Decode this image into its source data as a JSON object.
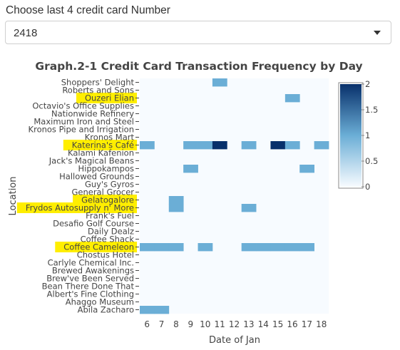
{
  "selector": {
    "label": "Choose last 4 credit card Number",
    "value": "2418"
  },
  "colors": {
    "highlight": "#ffee00",
    "plot_bg": "#f7fbff",
    "scale": [
      "#f7fbff",
      "#6baed6",
      "#08306b"
    ]
  },
  "chart_data": {
    "type": "heatmap",
    "title": "Graph.2-1 Credit Card Transaction Frequency by Day",
    "xlabel": "Date of Jan",
    "ylabel": "Location",
    "x": [
      6,
      7,
      8,
      9,
      10,
      11,
      12,
      13,
      14,
      15,
      16,
      17,
      18
    ],
    "y": [
      "Shoppers' Delight",
      "Roberts and Sons",
      "Ouzeri Elian",
      "Octavio's Office Supplies",
      "Nationwide Refinery",
      "Maximum Iron and Steel",
      "Kronos Pipe and Irrigation",
      "Kronos Mart",
      "Katerina's Café",
      "Kalami Kafenion",
      "Jack's Magical Beans",
      "Hippokampos",
      "Hallowed Grounds",
      "Guy's Gyros",
      "General Grocer",
      "Gelatogalore",
      "Frydos Autosupply n' More",
      "Frank's Fuel",
      "Desafio Golf Course",
      "Daily Dealz",
      "Coffee Shack",
      "Coffee Cameleon",
      "Chostus Hotel",
      "Carlyle Chemical Inc.",
      "Brewed Awakenings",
      "Brew've Been Served",
      "Bean There Done That",
      "Albert's Fine Clothing",
      "Ahaggo Museum",
      "Abila Zacharo"
    ],
    "highlighted": [
      "Ouzeri Elian",
      "Katerina's Café",
      "Gelatogalore",
      "Frydos Autosupply n' More",
      "Coffee Cameleon"
    ],
    "cells": [
      {
        "y": "Shoppers' Delight",
        "x": 11,
        "value": 1
      },
      {
        "y": "Ouzeri Elian",
        "x": 16,
        "value": 1
      },
      {
        "y": "Katerina's Café",
        "x": 6,
        "value": 1
      },
      {
        "y": "Katerina's Café",
        "x": 9,
        "value": 1
      },
      {
        "y": "Katerina's Café",
        "x": 10,
        "value": 1
      },
      {
        "y": "Katerina's Café",
        "x": 11,
        "value": 2
      },
      {
        "y": "Katerina's Café",
        "x": 13,
        "value": 1
      },
      {
        "y": "Katerina's Café",
        "x": 15,
        "value": 2
      },
      {
        "y": "Katerina's Café",
        "x": 16,
        "value": 1
      },
      {
        "y": "Katerina's Café",
        "x": 18,
        "value": 1
      },
      {
        "y": "Hippokampos",
        "x": 9,
        "value": 1
      },
      {
        "y": "Hippokampos",
        "x": 17,
        "value": 1
      },
      {
        "y": "Gelatogalore",
        "x": 8,
        "value": 1
      },
      {
        "y": "Frydos Autosupply n' More",
        "x": 8,
        "value": 1
      },
      {
        "y": "Frydos Autosupply n' More",
        "x": 13,
        "value": 1
      },
      {
        "y": "Coffee Cameleon",
        "x": 6,
        "value": 1
      },
      {
        "y": "Coffee Cameleon",
        "x": 7,
        "value": 1
      },
      {
        "y": "Coffee Cameleon",
        "x": 8,
        "value": 1
      },
      {
        "y": "Coffee Cameleon",
        "x": 10,
        "value": 1
      },
      {
        "y": "Coffee Cameleon",
        "x": 13,
        "value": 1
      },
      {
        "y": "Coffee Cameleon",
        "x": 14,
        "value": 1
      },
      {
        "y": "Coffee Cameleon",
        "x": 15,
        "value": 1
      },
      {
        "y": "Coffee Cameleon",
        "x": 16,
        "value": 1
      },
      {
        "y": "Coffee Cameleon",
        "x": 17,
        "value": 1
      },
      {
        "y": "Abila Zacharo",
        "x": 6,
        "value": 1
      },
      {
        "y": "Abila Zacharo",
        "x": 7,
        "value": 1
      }
    ],
    "zmin": 0,
    "zmax": 2,
    "colorbar": {
      "ticks": [
        0,
        0.5,
        1,
        1.5,
        2
      ],
      "tick_labels": [
        "0",
        "0.5",
        "1",
        "1.5",
        "2"
      ]
    }
  }
}
